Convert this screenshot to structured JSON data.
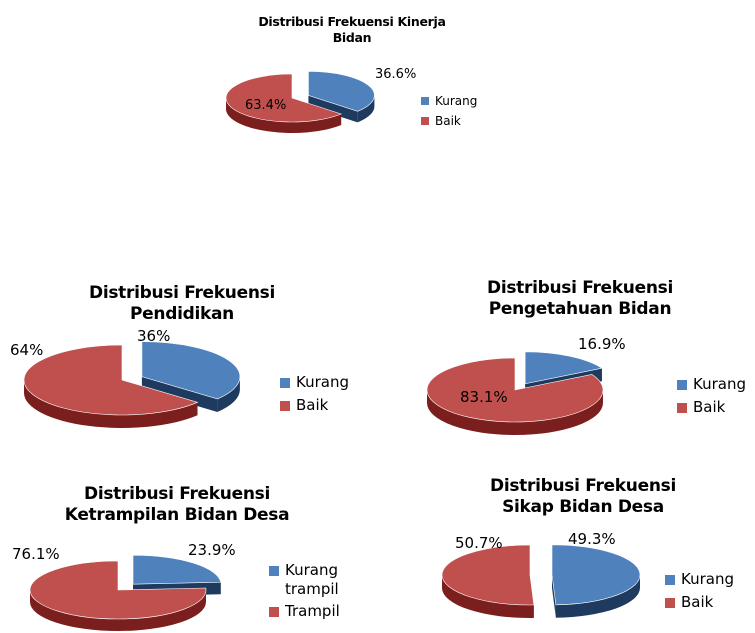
{
  "colors": {
    "blue": "#4f81bd",
    "blue_side": "#1f3a5f",
    "red": "#c0504d",
    "red_side": "#7a1f1d"
  },
  "chart_data": [
    {
      "type": "pie",
      "title": [
        "Distribusi Frekuensi Kinerja",
        "Bidan"
      ],
      "categories": [
        "Kurang",
        "Baik"
      ],
      "values": [
        36.6,
        63.4
      ],
      "data_labels": [
        "36.6%",
        "63.4%"
      ],
      "exploded": "Kurang",
      "legend": "right"
    },
    {
      "type": "pie",
      "title": [
        "Distribusi Frekuensi",
        "Pendidikan"
      ],
      "categories": [
        "Kurang",
        "Baik"
      ],
      "values": [
        36,
        64
      ],
      "data_labels": [
        "36%",
        "64%"
      ],
      "exploded": "Kurang",
      "legend": "right"
    },
    {
      "type": "pie",
      "title": [
        "Distribusi Frekuensi",
        "Pengetahuan Bidan"
      ],
      "categories": [
        "Kurang",
        "Baik"
      ],
      "values": [
        16.9,
        83.1
      ],
      "data_labels": [
        "16.9%",
        "83.1%"
      ],
      "exploded": "Kurang",
      "legend": "right"
    },
    {
      "type": "pie",
      "title": [
        "Distribusi Frekuensi",
        "Ketrampilan Bidan Desa"
      ],
      "categories": [
        "Kurang\ntrampil",
        "Trampil"
      ],
      "values": [
        23.9,
        76.1
      ],
      "data_labels": [
        "23.9%",
        "76.1%"
      ],
      "exploded": "Kurang\ntrampil",
      "legend": "right"
    },
    {
      "type": "pie",
      "title": [
        "Distribusi Frekuensi",
        "Sikap Bidan Desa"
      ],
      "categories": [
        "Kurang",
        "Baik"
      ],
      "values": [
        49.3,
        50.7
      ],
      "data_labels": [
        "49.3%",
        "50.7%"
      ],
      "exploded": "Kurang",
      "legend": "right"
    }
  ]
}
